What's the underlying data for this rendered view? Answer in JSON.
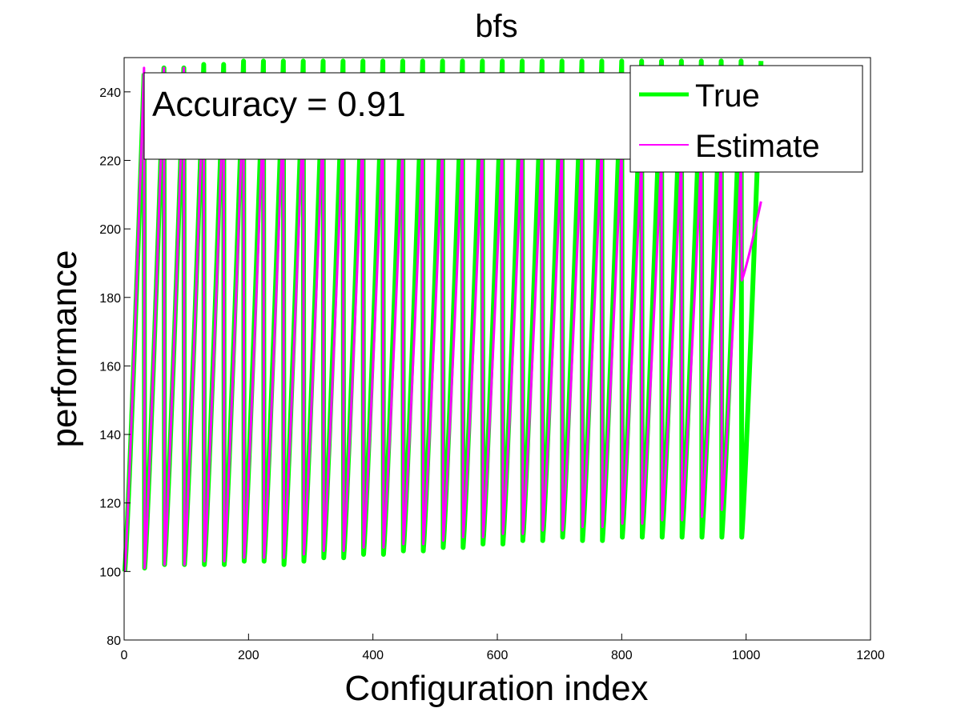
{
  "chart_data": {
    "type": "line",
    "title": "bfs",
    "xlabel": "Configuration index",
    "ylabel": "performance",
    "xlim": [
      0,
      1200
    ],
    "ylim": [
      80,
      250
    ],
    "xticks": [
      0,
      200,
      400,
      600,
      800,
      1000,
      1200
    ],
    "yticks": [
      80,
      100,
      120,
      140,
      160,
      180,
      200,
      220,
      240
    ],
    "grid": false,
    "legend_position": "top-right",
    "annotation": "Accuracy = 0.91",
    "num_configurations": 1024,
    "cycle_length": 32,
    "series": [
      {
        "name": "True",
        "color": "#00ff00",
        "cycle_minimum": [
          100,
          101,
          102,
          102,
          102,
          102,
          103,
          103,
          102,
          103,
          104,
          104,
          105,
          105,
          106,
          106,
          107,
          107,
          108,
          108,
          109,
          109,
          110,
          109,
          109,
          110,
          110,
          110,
          110,
          110,
          110,
          110
        ],
        "cycle_maximum": [
          245,
          247,
          247,
          248,
          248,
          249,
          249,
          249,
          249,
          249,
          249,
          249,
          249,
          249,
          249,
          249,
          249,
          249,
          249,
          249,
          249,
          249,
          249,
          249,
          249,
          249,
          249,
          249,
          249,
          249,
          249,
          249
        ]
      },
      {
        "name": "Estimate",
        "color": "#ff00ff",
        "cycle_minimum": [
          100,
          101,
          102,
          102,
          103,
          103,
          104,
          104,
          104,
          105,
          106,
          106,
          107,
          107,
          108,
          108,
          109,
          110,
          110,
          111,
          111,
          112,
          112,
          113,
          113,
          114,
          114,
          115,
          115,
          116,
          118,
          185
        ],
        "cycle_maximum": [
          247,
          247,
          247,
          245,
          240,
          240,
          235,
          235,
          235,
          232,
          230,
          230,
          228,
          225,
          225,
          225,
          225,
          225,
          225,
          225,
          225,
          225,
          225,
          225,
          225,
          222,
          222,
          222,
          222,
          222,
          220,
          208
        ]
      }
    ]
  }
}
